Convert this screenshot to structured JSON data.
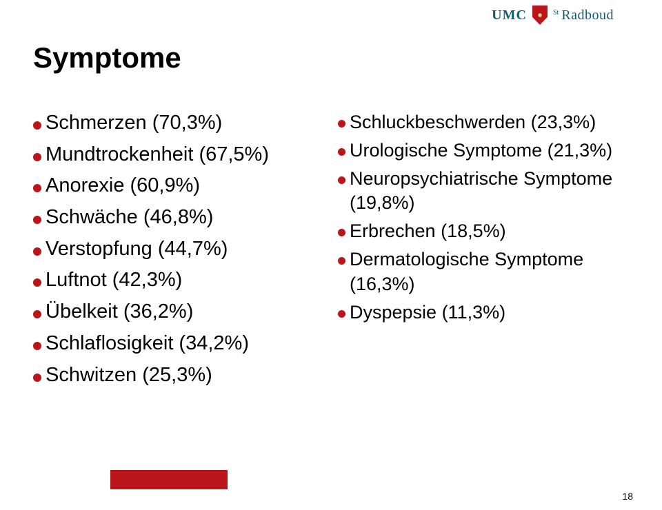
{
  "logo": {
    "umc": "UMC",
    "st": "St",
    "radboud": "Radboud",
    "shield_color": "#b9151b",
    "text_color": "#0f5d6e"
  },
  "title": "Symptome",
  "bullet_color": "#b9151b",
  "left_column": [
    "Schmerzen (70,3%)",
    "Mundtrockenheit (67,5%)",
    "Anorexie (60,9%)",
    "Schwäche (46,8%)",
    "Verstopfung (44,7%)",
    "Luftnot (42,3%)",
    "Übelkeit (36,2%)",
    "Schlaflosigkeit (34,2%)",
    "Schwitzen (25,3%)"
  ],
  "right_column": [
    "Schluckbeschwerden (23,3%)",
    "Urologische Symptome (21,3%)",
    "Neuropsychiatrische Symptome (19,8%)",
    "Erbrechen (18,5%)",
    "Dermatologische Symptome (16,3%)",
    "Dyspepsie (11,3%)"
  ],
  "footer_bar_color": "#b9151b",
  "page_number": "18",
  "background_color": "#ffffff"
}
